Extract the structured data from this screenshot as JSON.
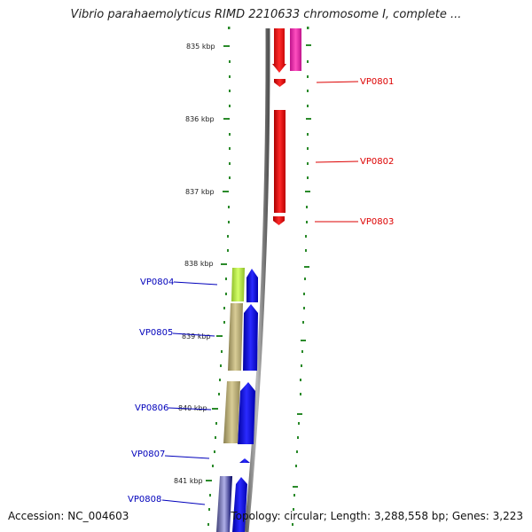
{
  "title": "Vibrio parahaemolyticus RIMD 2210633 chromosome I, complete ...",
  "accession": "Accession: NC_004603",
  "summary": "Topology: circular; Length: 3,288,558 bp; Genes: 3,223",
  "ticks": [
    "835 kbp",
    "836 kbp",
    "837 kbp",
    "838 kbp",
    "839 kbp",
    "840 kbp",
    "841 kbp"
  ],
  "genes": [
    {
      "name": "VP0801",
      "color": "#dd0000",
      "strand": "forward"
    },
    {
      "name": "VP0802",
      "color": "#dd0000",
      "strand": "forward"
    },
    {
      "name": "VP0803",
      "color": "#dd0000",
      "strand": "forward"
    },
    {
      "name": "VP0804",
      "color": "#0000bb",
      "strand": "reverse"
    },
    {
      "name": "VP0805",
      "color": "#0000bb",
      "strand": "reverse"
    },
    {
      "name": "VP0806",
      "color": "#0000bb",
      "strand": "reverse"
    },
    {
      "name": "VP0807",
      "color": "#0000bb",
      "strand": "reverse"
    },
    {
      "name": "VP0808",
      "color": "#0000bb",
      "strand": "reverse"
    }
  ]
}
